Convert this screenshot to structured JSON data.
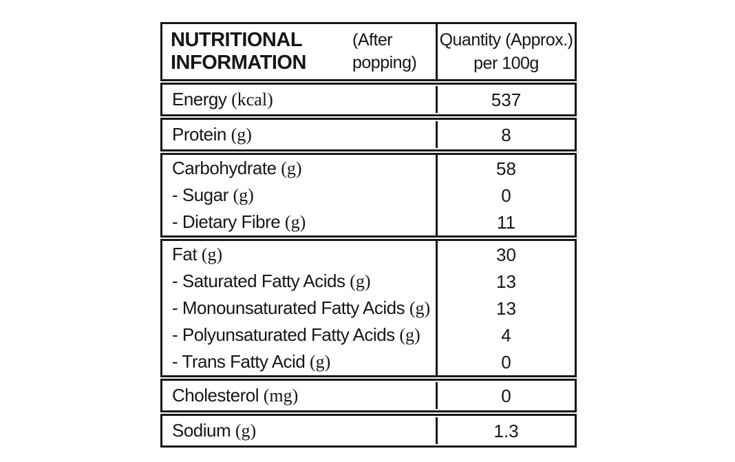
{
  "table": {
    "header": {
      "title": "NUTRITIONAL INFORMATION",
      "subtitle": "(After popping)",
      "quantity_line1": "Quantity (Approx.)",
      "quantity_line2": "per 100g"
    },
    "sub_prefix": "- ",
    "groups": [
      {
        "rows": [
          {
            "name": "Energy",
            "unit": "(kcal)",
            "value": "537",
            "sub": false
          }
        ]
      },
      {
        "rows": [
          {
            "name": "Protein",
            "unit": "(g)",
            "value": "8",
            "sub": false
          }
        ]
      },
      {
        "rows": [
          {
            "name": "Carbohydrate",
            "unit": "(g)",
            "value": "58",
            "sub": false
          },
          {
            "name": "Sugar",
            "unit": "(g)",
            "value": "0",
            "sub": true
          },
          {
            "name": "Dietary Fibre",
            "unit": "(g)",
            "value": "11",
            "sub": true
          }
        ]
      },
      {
        "rows": [
          {
            "name": "Fat",
            "unit": "(g)",
            "value": "30",
            "sub": false
          },
          {
            "name": "Saturated Fatty Acids",
            "unit": "(g)",
            "value": "13",
            "sub": true
          },
          {
            "name": "Monounsaturated Fatty Acids",
            "unit": "(g)",
            "value": "13",
            "sub": true
          },
          {
            "name": "Polyunsaturated Fatty Acids",
            "unit": "(g)",
            "value": "4",
            "sub": true
          },
          {
            "name": "Trans Fatty Acid",
            "unit": "(g)",
            "value": "0",
            "sub": true
          }
        ]
      },
      {
        "rows": [
          {
            "name": "Cholesterol",
            "unit": "(mg)",
            "value": "0",
            "sub": false
          }
        ]
      },
      {
        "rows": [
          {
            "name": "Sodium",
            "unit": "(g)",
            "value": "1.3",
            "sub": false
          }
        ]
      }
    ]
  },
  "colors": {
    "border": "#161616",
    "text": "#161616",
    "background": "#ffffff"
  }
}
